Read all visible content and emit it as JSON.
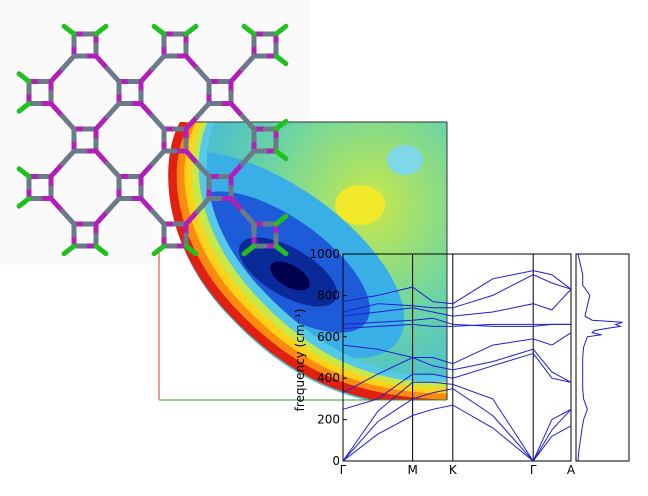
{
  "chart_data": {
    "type": "band-structure",
    "y_label": "frequency (cm⁻¹)",
    "ylim": [
      0,
      1000
    ],
    "yticks": [
      0,
      200,
      400,
      600,
      800,
      1000
    ],
    "xlim": [
      0,
      3.275
    ],
    "xticks": [
      {
        "value": 0,
        "label": "Γ"
      },
      {
        "value": 1,
        "label": "M"
      },
      {
        "value": 1.577,
        "label": "K"
      },
      {
        "value": 2.732,
        "label": "Γ"
      },
      {
        "value": 3.275,
        "label": "A"
      }
    ],
    "x": [
      0,
      0.5,
      1,
      1.29,
      1.577,
      2.15,
      2.732,
      3.0,
      3.275
    ],
    "color": "#1f1fd0",
    "series": [
      {
        "values": [
          0,
          130,
          220,
          250,
          270,
          160,
          0,
          120,
          170
        ]
      },
      {
        "values": [
          0,
          190,
          300,
          330,
          350,
          220,
          0,
          150,
          250
        ]
      },
      {
        "values": [
          0,
          240,
          380,
          380,
          370,
          300,
          0,
          200,
          250
        ]
      },
      {
        "values": [
          250,
          300,
          420,
          420,
          400,
          460,
          520,
          400,
          380
        ]
      },
      {
        "values": [
          330,
          420,
          500,
          460,
          440,
          480,
          540,
          430,
          380
        ]
      },
      {
        "values": [
          560,
          540,
          500,
          500,
          470,
          560,
          590,
          560,
          620
        ]
      },
      {
        "values": [
          640,
          650,
          660,
          650,
          650,
          660,
          660,
          660,
          660
        ]
      },
      {
        "values": [
          660,
          670,
          680,
          690,
          660,
          650,
          650,
          660,
          660
        ]
      },
      {
        "values": [
          700,
          720,
          740,
          720,
          700,
          720,
          760,
          730,
          830
        ]
      },
      {
        "values": [
          720,
          760,
          750,
          740,
          740,
          800,
          900,
          860,
          830
        ]
      },
      {
        "values": [
          770,
          800,
          840,
          770,
          760,
          880,
          920,
          900,
          830
        ]
      }
    ],
    "dos": {
      "xlim": [
        0,
        1
      ],
      "freq": [
        0,
        50,
        100,
        150,
        200,
        250,
        300,
        350,
        400,
        450,
        500,
        550,
        600,
        610,
        620,
        630,
        640,
        650,
        660,
        670,
        680,
        700,
        750,
        800,
        850,
        900,
        950,
        1000
      ],
      "values": [
        0,
        0.02,
        0.05,
        0.08,
        0.12,
        0.2,
        0.12,
        0.1,
        0.1,
        0.1,
        0.1,
        0.12,
        0.2,
        0.5,
        0.3,
        0.35,
        0.6,
        0.9,
        0.8,
        0.95,
        0.3,
        0.15,
        0.2,
        0.25,
        0.1,
        0.1,
        0.05,
        0
      ]
    }
  }
}
